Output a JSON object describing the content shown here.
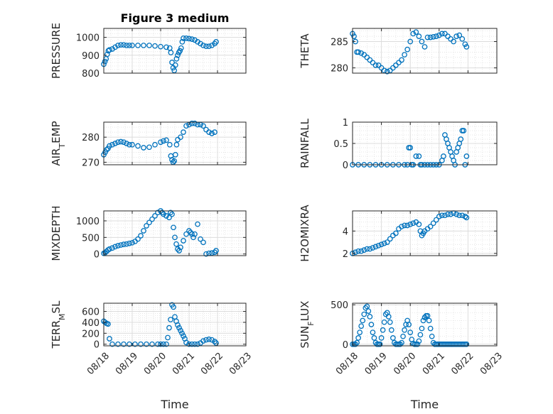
{
  "figure": {
    "title": "Figure 3 medium",
    "marker_color": "#0072BD",
    "grid_color": "#dcdcdc",
    "axis_color": "#262626"
  },
  "chart_data": [
    {
      "type": "scatter",
      "title": "Figure 3 medium",
      "xlabel": "",
      "ylabel": "PRESSURE",
      "ylim": [
        800,
        1050
      ],
      "yticks": [
        800,
        900,
        1000
      ],
      "xlim": [
        "08/18",
        "08/23"
      ],
      "xticks": [
        "08/18",
        "08/19",
        "08/20",
        "08/21",
        "08/22",
        "08/23"
      ],
      "x_days": [
        0,
        0.04,
        0.08,
        0.12,
        0.16,
        0.2,
        0.3,
        0.4,
        0.5,
        0.6,
        0.7,
        0.8,
        0.9,
        1.0,
        1.2,
        1.4,
        1.6,
        1.8,
        2.0,
        2.2,
        2.32,
        2.36,
        2.4,
        2.44,
        2.48,
        2.52,
        2.56,
        2.6,
        2.64,
        2.68,
        2.72,
        2.76,
        2.8,
        2.9,
        3.0,
        3.1,
        3.2,
        3.3,
        3.4,
        3.5,
        3.6,
        3.7,
        3.8,
        3.9,
        3.95
      ],
      "values": [
        850,
        865,
        880,
        905,
        925,
        930,
        935,
        945,
        955,
        958,
        958,
        955,
        955,
        955,
        955,
        955,
        955,
        952,
        948,
        945,
        940,
        915,
        860,
        830,
        815,
        845,
        880,
        900,
        915,
        925,
        940,
        975,
        995,
        995,
        993,
        990,
        985,
        975,
        965,
        955,
        950,
        950,
        955,
        965,
        975
      ]
    },
    {
      "type": "scatter",
      "xlabel": "",
      "ylabel": "THETA",
      "ylim": [
        279,
        287.5
      ],
      "yticks": [
        280,
        285
      ],
      "xlim": [
        "08/18",
        "08/23"
      ],
      "xticks": [
        "08/18",
        "08/19",
        "08/20",
        "08/21",
        "08/22",
        "08/23"
      ],
      "x_days": [
        0,
        0.05,
        0.1,
        0.15,
        0.2,
        0.3,
        0.4,
        0.5,
        0.6,
        0.7,
        0.8,
        0.9,
        1.0,
        1.1,
        1.2,
        1.3,
        1.4,
        1.5,
        1.6,
        1.7,
        1.8,
        1.9,
        2.0,
        2.1,
        2.2,
        2.3,
        2.4,
        2.5,
        2.6,
        2.7,
        2.8,
        2.9,
        3.0,
        3.1,
        3.2,
        3.3,
        3.4,
        3.5,
        3.6,
        3.7,
        3.8,
        3.9,
        3.95
      ],
      "values": [
        286.5,
        286,
        285,
        283,
        283,
        282.8,
        282.5,
        282,
        281.5,
        281,
        280.5,
        280.5,
        280,
        279.5,
        279.3,
        279.5,
        280,
        280.5,
        281,
        281.5,
        282.5,
        283.5,
        285,
        286.5,
        286.8,
        286,
        285,
        284,
        285.8,
        285.8,
        285.9,
        286,
        286.2,
        286.5,
        286.5,
        286,
        285.5,
        285,
        286,
        286.2,
        285.5,
        284.5,
        284
      ]
    },
    {
      "type": "scatter",
      "xlabel": "",
      "ylabel": "AIR_TEMP",
      "ylim": [
        269,
        286
      ],
      "yticks": [
        270,
        280
      ],
      "xlim": [
        "08/18",
        "08/23"
      ],
      "xticks": [
        "08/18",
        "08/19",
        "08/20",
        "08/21",
        "08/22",
        "08/23"
      ],
      "x_days": [
        0,
        0.05,
        0.1,
        0.15,
        0.2,
        0.3,
        0.4,
        0.5,
        0.6,
        0.7,
        0.8,
        0.9,
        1.0,
        1.2,
        1.4,
        1.6,
        1.8,
        2.0,
        2.1,
        2.2,
        2.32,
        2.36,
        2.4,
        2.44,
        2.48,
        2.52,
        2.56,
        2.6,
        2.7,
        2.8,
        2.9,
        3.0,
        3.1,
        3.2,
        3.3,
        3.4,
        3.5,
        3.6,
        3.7,
        3.8,
        3.9
      ],
      "values": [
        273,
        274,
        275,
        275.5,
        276.5,
        277,
        277.5,
        278,
        278.2,
        278,
        277.5,
        277,
        277,
        276.5,
        275.8,
        276,
        277,
        278,
        278.5,
        278.8,
        277,
        272.5,
        271,
        270,
        270.5,
        273,
        277,
        279,
        280,
        282,
        284.5,
        285,
        285.5,
        285.5,
        285,
        285,
        284.5,
        283,
        282,
        281.5,
        282
      ]
    },
    {
      "type": "scatter",
      "xlabel": "",
      "ylabel": "RAINFALL",
      "ylim": [
        0,
        1
      ],
      "yticks": [
        0,
        0.5,
        1
      ],
      "xlim": [
        "08/18",
        "08/23"
      ],
      "xticks": [
        "08/18",
        "08/19",
        "08/20",
        "08/21",
        "08/22",
        "08/23"
      ],
      "x_days": [
        0,
        0.2,
        0.4,
        0.6,
        0.8,
        1.0,
        1.2,
        1.4,
        1.6,
        1.8,
        1.9,
        1.95,
        2.0,
        2.05,
        2.1,
        2.2,
        2.3,
        2.35,
        2.4,
        2.5,
        2.6,
        2.7,
        2.8,
        2.9,
        3.0,
        3.1,
        3.15,
        3.2,
        3.25,
        3.3,
        3.35,
        3.4,
        3.45,
        3.5,
        3.55,
        3.6,
        3.65,
        3.7,
        3.75,
        3.8,
        3.85,
        3.9,
        3.95
      ],
      "values": [
        0,
        0,
        0,
        0,
        0,
        0,
        0,
        0,
        0,
        0,
        0,
        0.4,
        0.4,
        0,
        0,
        0.2,
        0.2,
        0,
        0,
        0,
        0,
        0,
        0,
        0,
        0,
        0.1,
        0.2,
        0.7,
        0.6,
        0.5,
        0.4,
        0.3,
        0.2,
        0.1,
        0,
        0.3,
        0.4,
        0.5,
        0.6,
        0.8,
        0.8,
        0,
        0.2
      ]
    },
    {
      "type": "scatter",
      "xlabel": "",
      "ylabel": "MIXDEPTH",
      "ylim": [
        -50,
        1300
      ],
      "yticks": [
        0,
        500,
        1000
      ],
      "xlim": [
        "08/18",
        "08/23"
      ],
      "xticks": [
        "08/18",
        "08/19",
        "08/20",
        "08/21",
        "08/22",
        "08/23"
      ],
      "x_days": [
        0,
        0.05,
        0.1,
        0.15,
        0.2,
        0.3,
        0.4,
        0.5,
        0.6,
        0.7,
        0.8,
        0.9,
        1.0,
        1.1,
        1.2,
        1.3,
        1.4,
        1.5,
        1.6,
        1.7,
        1.8,
        1.9,
        2.0,
        2.05,
        2.1,
        2.2,
        2.3,
        2.35,
        2.4,
        2.45,
        2.5,
        2.55,
        2.6,
        2.65,
        2.7,
        2.8,
        2.9,
        3.0,
        3.05,
        3.1,
        3.15,
        3.2,
        3.3,
        3.4,
        3.5,
        3.6,
        3.7,
        3.8,
        3.9,
        3.95
      ],
      "values": [
        20,
        40,
        80,
        120,
        150,
        180,
        220,
        250,
        270,
        290,
        300,
        320,
        340,
        380,
        450,
        550,
        700,
        850,
        950,
        1050,
        1150,
        1250,
        1300,
        1250,
        1200,
        1150,
        1100,
        1250,
        1200,
        800,
        500,
        300,
        150,
        100,
        200,
        400,
        600,
        700,
        650,
        600,
        500,
        600,
        900,
        450,
        350,
        0,
        20,
        30,
        50,
        100
      ]
    },
    {
      "type": "scatter",
      "xlabel": "",
      "ylabel": "H2OMIXRA",
      "ylim": [
        1.8,
        5.8
      ],
      "yticks": [
        2,
        4
      ],
      "xlim": [
        "08/18",
        "08/23"
      ],
      "xticks": [
        "08/18",
        "08/19",
        "08/20",
        "08/21",
        "08/22",
        "08/23"
      ],
      "x_days": [
        0,
        0.1,
        0.2,
        0.3,
        0.4,
        0.5,
        0.6,
        0.7,
        0.8,
        0.9,
        1.0,
        1.1,
        1.2,
        1.3,
        1.4,
        1.5,
        1.6,
        1.7,
        1.8,
        1.9,
        2.0,
        2.1,
        2.2,
        2.3,
        2.35,
        2.4,
        2.45,
        2.5,
        2.6,
        2.7,
        2.8,
        2.9,
        3.0,
        3.1,
        3.2,
        3.3,
        3.4,
        3.5,
        3.6,
        3.7,
        3.8,
        3.9,
        3.95
      ],
      "values": [
        2.0,
        2.1,
        2.2,
        2.2,
        2.3,
        2.4,
        2.4,
        2.5,
        2.6,
        2.7,
        2.8,
        2.9,
        3.0,
        3.3,
        3.6,
        3.8,
        4.2,
        4.4,
        4.5,
        4.5,
        4.6,
        4.7,
        4.8,
        4.6,
        4.0,
        3.6,
        3.8,
        4.0,
        4.2,
        4.4,
        4.7,
        5.0,
        5.3,
        5.4,
        5.4,
        5.5,
        5.5,
        5.6,
        5.5,
        5.4,
        5.4,
        5.3,
        5.2
      ]
    },
    {
      "type": "scatter",
      "xlabel": "Time",
      "ylabel": "TERR_MSL",
      "ylim": [
        -30,
        750
      ],
      "yticks": [
        0,
        200,
        400,
        600
      ],
      "yticklabels": [
        "0",
        "200",
        "400",
        "600"
      ],
      "xlim": [
        "08/18",
        "08/23"
      ],
      "xticks": [
        "08/18",
        "08/19",
        "08/20",
        "08/21",
        "08/22",
        "08/23"
      ],
      "x_days": [
        0,
        0.05,
        0.1,
        0.15,
        0.2,
        0.3,
        0.5,
        0.7,
        0.9,
        1.1,
        1.3,
        1.5,
        1.7,
        1.9,
        2.0,
        2.1,
        2.2,
        2.25,
        2.3,
        2.35,
        2.4,
        2.45,
        2.5,
        2.55,
        2.6,
        2.65,
        2.7,
        2.75,
        2.8,
        2.85,
        2.9,
        3.0,
        3.1,
        3.2,
        3.3,
        3.4,
        3.5,
        3.6,
        3.7,
        3.8,
        3.9,
        3.95
      ],
      "values": [
        420,
        400,
        380,
        370,
        100,
        0,
        0,
        0,
        0,
        0,
        0,
        0,
        0,
        0,
        0,
        0,
        0,
        120,
        300,
        450,
        720,
        680,
        500,
        420,
        350,
        300,
        250,
        200,
        150,
        100,
        30,
        0,
        0,
        0,
        0,
        20,
        60,
        80,
        90,
        80,
        50,
        20
      ]
    },
    {
      "type": "scatter",
      "xlabel": "Time",
      "ylabel": "SUN_FLUX",
      "ylim": [
        -20,
        520
      ],
      "yticks": [
        0,
        500
      ],
      "xlim": [
        "08/18",
        "08/23"
      ],
      "xticks": [
        "08/18",
        "08/19",
        "08/20",
        "08/21",
        "08/22",
        "08/23"
      ],
      "x_days": [
        0,
        0.05,
        0.1,
        0.15,
        0.2,
        0.25,
        0.3,
        0.35,
        0.4,
        0.45,
        0.5,
        0.55,
        0.6,
        0.65,
        0.7,
        0.75,
        0.8,
        0.85,
        0.9,
        0.95,
        1.0,
        1.05,
        1.1,
        1.15,
        1.2,
        1.25,
        1.3,
        1.35,
        1.4,
        1.45,
        1.5,
        1.55,
        1.6,
        1.65,
        1.7,
        1.75,
        1.8,
        1.85,
        1.9,
        1.95,
        2.0,
        2.05,
        2.1,
        2.15,
        2.2,
        2.25,
        2.3,
        2.35,
        2.4,
        2.45,
        2.5,
        2.55,
        2.6,
        2.65,
        2.7,
        2.75,
        2.8,
        2.85,
        2.9,
        2.95,
        3.0,
        3.05,
        3.1,
        3.15,
        3.2,
        3.25,
        3.3,
        3.35,
        3.4,
        3.45,
        3.5,
        3.55,
        3.6,
        3.65,
        3.7,
        3.75,
        3.8,
        3.85,
        3.9,
        3.95
      ],
      "values": [
        0,
        0,
        0,
        20,
        80,
        150,
        230,
        300,
        380,
        460,
        480,
        420,
        350,
        250,
        150,
        80,
        20,
        0,
        0,
        0,
        80,
        180,
        280,
        380,
        400,
        350,
        280,
        180,
        80,
        20,
        0,
        0,
        0,
        0,
        20,
        100,
        180,
        250,
        300,
        250,
        150,
        60,
        10,
        0,
        0,
        0,
        40,
        120,
        200,
        300,
        340,
        360,
        360,
        300,
        200,
        100,
        20,
        0,
        0,
        0,
        0,
        0,
        0,
        0,
        0,
        0,
        0,
        0,
        0,
        0,
        0,
        0,
        0,
        0,
        0,
        0,
        0,
        0,
        0,
        0
      ]
    }
  ]
}
